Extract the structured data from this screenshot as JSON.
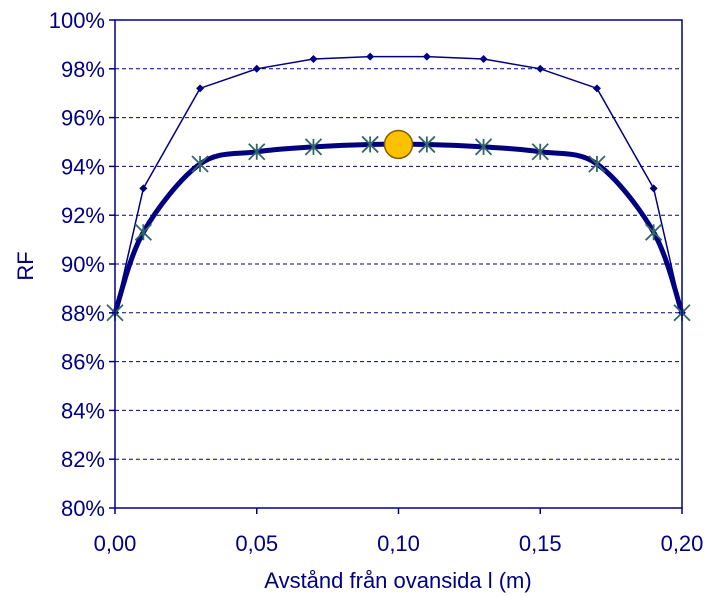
{
  "chart_data": {
    "type": "line",
    "title": "",
    "xlabel": "Avstånd från ovansida l  (m)",
    "ylabel": "RF",
    "xlim": [
      0,
      0.2
    ],
    "ylim": [
      0.8,
      1.0
    ],
    "x_ticks": [
      0,
      0.05,
      0.1,
      0.15,
      0.2
    ],
    "x_tick_labels": [
      "0,00",
      "0,05",
      "0,10",
      "0,15",
      "0,20"
    ],
    "y_ticks": [
      0.8,
      0.82,
      0.84,
      0.86,
      0.88,
      0.9,
      0.92,
      0.94,
      0.96,
      0.98,
      1.0
    ],
    "y_tick_labels": [
      "80%",
      "82%",
      "84%",
      "86%",
      "88%",
      "90%",
      "92%",
      "94%",
      "96%",
      "98%",
      "100%"
    ],
    "grid": "horizontal-dashed",
    "legend": "none",
    "colors": {
      "upper_series": "#000080",
      "lower_series": "#000080",
      "star_marker": "#336666",
      "highlight_point_fill": "#FFC000",
      "highlight_point_stroke": "#806000",
      "grid": "#000080",
      "axes": "#000080"
    },
    "series": [
      {
        "x": [
          0,
          0.01,
          0.03,
          0.05,
          0.07,
          0.09,
          0.11,
          0.13,
          0.15,
          0.17,
          0.19,
          0.2
        ],
        "values": [
          0.88,
          0.931,
          0.972,
          0.98,
          0.984,
          0.985,
          0.985,
          0.984,
          0.98,
          0.972,
          0.931,
          0.88
        ],
        "marker": "diamond",
        "line": "thin"
      },
      {
        "x": [
          0,
          0.01,
          0.03,
          0.05,
          0.07,
          0.09,
          0.11,
          0.13,
          0.15,
          0.17,
          0.19,
          0.2
        ],
        "values": [
          0.88,
          0.913,
          0.941,
          0.946,
          0.948,
          0.949,
          0.949,
          0.948,
          0.946,
          0.941,
          0.913,
          0.88
        ],
        "marker": "star",
        "line": "thick-smooth"
      }
    ],
    "highlight_point": {
      "x": 0.1,
      "y": 0.949
    }
  }
}
